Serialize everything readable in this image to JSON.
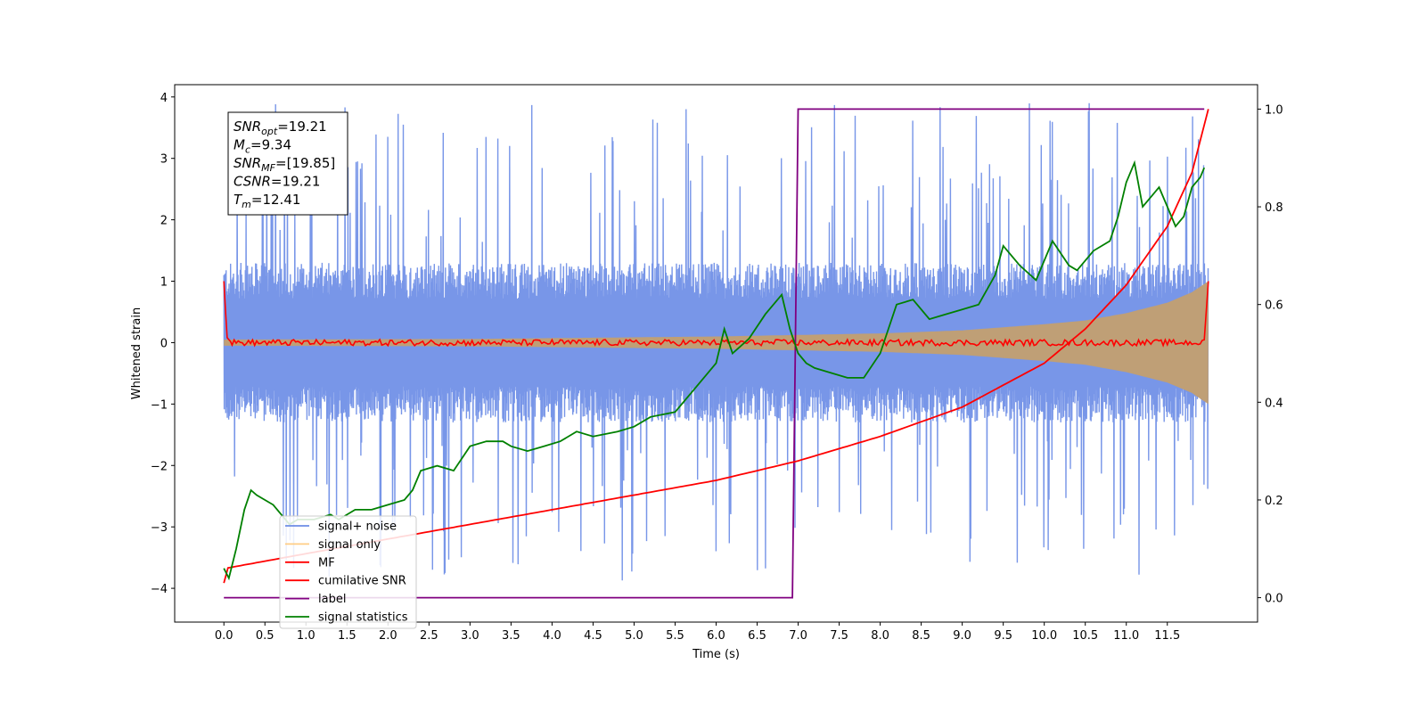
{
  "chart_data": {
    "type": "line",
    "xlabel": "Time (s)",
    "ylabel": "Whitened strain",
    "xlim": [
      -0.6,
      12.6
    ],
    "ylim_left": [
      -4.55,
      4.2
    ],
    "ylim_right": [
      -0.05,
      1.05
    ],
    "x_ticks": [
      0.0,
      0.5,
      1.0,
      1.5,
      2.0,
      2.5,
      3.0,
      3.5,
      4.0,
      4.5,
      5.0,
      5.5,
      6.0,
      6.5,
      7.0,
      7.5,
      8.0,
      8.5,
      9.0,
      9.5,
      10.0,
      10.5,
      11.0,
      11.5
    ],
    "x_tick_labels": [
      "0.0",
      "0.5",
      "1.0",
      "1.5",
      "2.0",
      "2.5",
      "3.0",
      "3.5",
      "4.0",
      "4.5",
      "5.0",
      "5.5",
      "6.0",
      "6.5",
      "7.0",
      "7.5",
      "8.0",
      "8.5",
      "9.0",
      "9.5",
      "10.0",
      "10.5",
      "11.0",
      "11.5"
    ],
    "y_left_ticks": [
      4,
      3,
      2,
      1,
      0,
      -1,
      -2,
      -3,
      -4
    ],
    "y_left_tick_labels": [
      "4",
      "3",
      "2",
      "1",
      "0",
      "−1",
      "−2",
      "−3",
      "−4"
    ],
    "y_right_ticks": [
      1.0,
      0.8,
      0.6,
      0.4,
      0.2,
      0.0
    ],
    "y_right_tick_labels": [
      "1.0",
      "0.8",
      "0.6",
      "0.4",
      "0.2",
      "0.0"
    ],
    "grid": false,
    "legend_position": "lower-left",
    "annotation": {
      "lines": [
        {
          "main": "SNR",
          "sub": "opt",
          "value": "=19.21"
        },
        {
          "main": "M",
          "sub": "c",
          "value": "=9.34"
        },
        {
          "main": "SNR",
          "sub": "MF",
          "value": "=[19.85]"
        },
        {
          "main": "CSNR",
          "sub": "",
          "value": "=19.21"
        },
        {
          "main": "T",
          "sub": "m",
          "value": "=12.41"
        }
      ]
    },
    "series": [
      {
        "name": "signal+ noise",
        "color": "#6d8de6",
        "axis": "left",
        "style": "noise band",
        "amplitude": 1.3,
        "peak_amplitude": 3.9,
        "x_range": [
          0.0,
          12.0
        ]
      },
      {
        "name": "signal only",
        "color": "#ffc878",
        "axis": "left",
        "style": "chirp envelope",
        "envelope_x": [
          0.0,
          3.0,
          6.0,
          8.0,
          9.0,
          10.0,
          10.5,
          11.0,
          11.5,
          11.8,
          12.0
        ],
        "envelope_y": [
          0.05,
          0.06,
          0.1,
          0.15,
          0.2,
          0.3,
          0.36,
          0.48,
          0.65,
          0.82,
          1.0
        ]
      },
      {
        "name": "MF",
        "color": "#ff0000",
        "axis": "left",
        "style": "noisy flat",
        "x": [
          0.0,
          0.02,
          0.04,
          0.08,
          11.96,
          12.0
        ],
        "y": [
          1.0,
          0.5,
          0.08,
          0.02,
          0.0,
          1.0
        ],
        "noise": 0.05
      },
      {
        "name": "cumilative SNR",
        "color": "#ff0000",
        "axis": "right",
        "x": [
          0.0,
          0.02,
          1.0,
          2.0,
          3.0,
          4.0,
          5.0,
          6.0,
          7.0,
          8.0,
          9.0,
          10.0,
          10.5,
          11.0,
          11.5,
          11.8,
          12.0
        ],
        "y": [
          0.03,
          0.06,
          0.09,
          0.12,
          0.15,
          0.18,
          0.21,
          0.24,
          0.28,
          0.33,
          0.39,
          0.48,
          0.55,
          0.64,
          0.76,
          0.87,
          1.0
        ]
      },
      {
        "name": "label",
        "color": "#800080",
        "axis": "right",
        "x": [
          0.0,
          6.93,
          7.0,
          11.95
        ],
        "y": [
          0.0,
          0.0,
          1.0,
          1.0
        ]
      },
      {
        "name": "signal statistics",
        "color": "#008000",
        "axis": "right",
        "x": [
          0.0,
          0.06,
          0.15,
          0.25,
          0.33,
          0.4,
          0.6,
          0.8,
          0.9,
          1.1,
          1.3,
          1.4,
          1.6,
          1.8,
          2.0,
          2.2,
          2.3,
          2.4,
          2.6,
          2.8,
          3.0,
          3.2,
          3.4,
          3.5,
          3.7,
          3.9,
          4.1,
          4.3,
          4.5,
          4.8,
          5.0,
          5.2,
          5.5,
          5.8,
          6.0,
          6.1,
          6.2,
          6.4,
          6.6,
          6.8,
          6.9,
          7.0,
          7.1,
          7.2,
          7.4,
          7.6,
          7.8,
          8.0,
          8.2,
          8.4,
          8.6,
          8.8,
          9.0,
          9.2,
          9.4,
          9.5,
          9.7,
          9.9,
          10.1,
          10.3,
          10.4,
          10.6,
          10.8,
          10.9,
          11.0,
          11.1,
          11.2,
          11.3,
          11.4,
          11.5,
          11.6,
          11.7,
          11.8,
          11.9,
          11.95
        ],
        "y": [
          0.06,
          0.04,
          0.1,
          0.18,
          0.22,
          0.21,
          0.19,
          0.15,
          0.16,
          0.16,
          0.17,
          0.16,
          0.18,
          0.18,
          0.19,
          0.2,
          0.22,
          0.26,
          0.27,
          0.26,
          0.31,
          0.32,
          0.32,
          0.31,
          0.3,
          0.31,
          0.32,
          0.34,
          0.33,
          0.34,
          0.35,
          0.37,
          0.38,
          0.44,
          0.48,
          0.55,
          0.5,
          0.53,
          0.58,
          0.62,
          0.55,
          0.5,
          0.48,
          0.47,
          0.46,
          0.45,
          0.45,
          0.5,
          0.6,
          0.61,
          0.57,
          0.58,
          0.59,
          0.6,
          0.66,
          0.72,
          0.68,
          0.65,
          0.73,
          0.68,
          0.67,
          0.71,
          0.73,
          0.78,
          0.85,
          0.89,
          0.8,
          0.82,
          0.84,
          0.8,
          0.76,
          0.78,
          0.84,
          0.86,
          0.88
        ]
      }
    ]
  }
}
